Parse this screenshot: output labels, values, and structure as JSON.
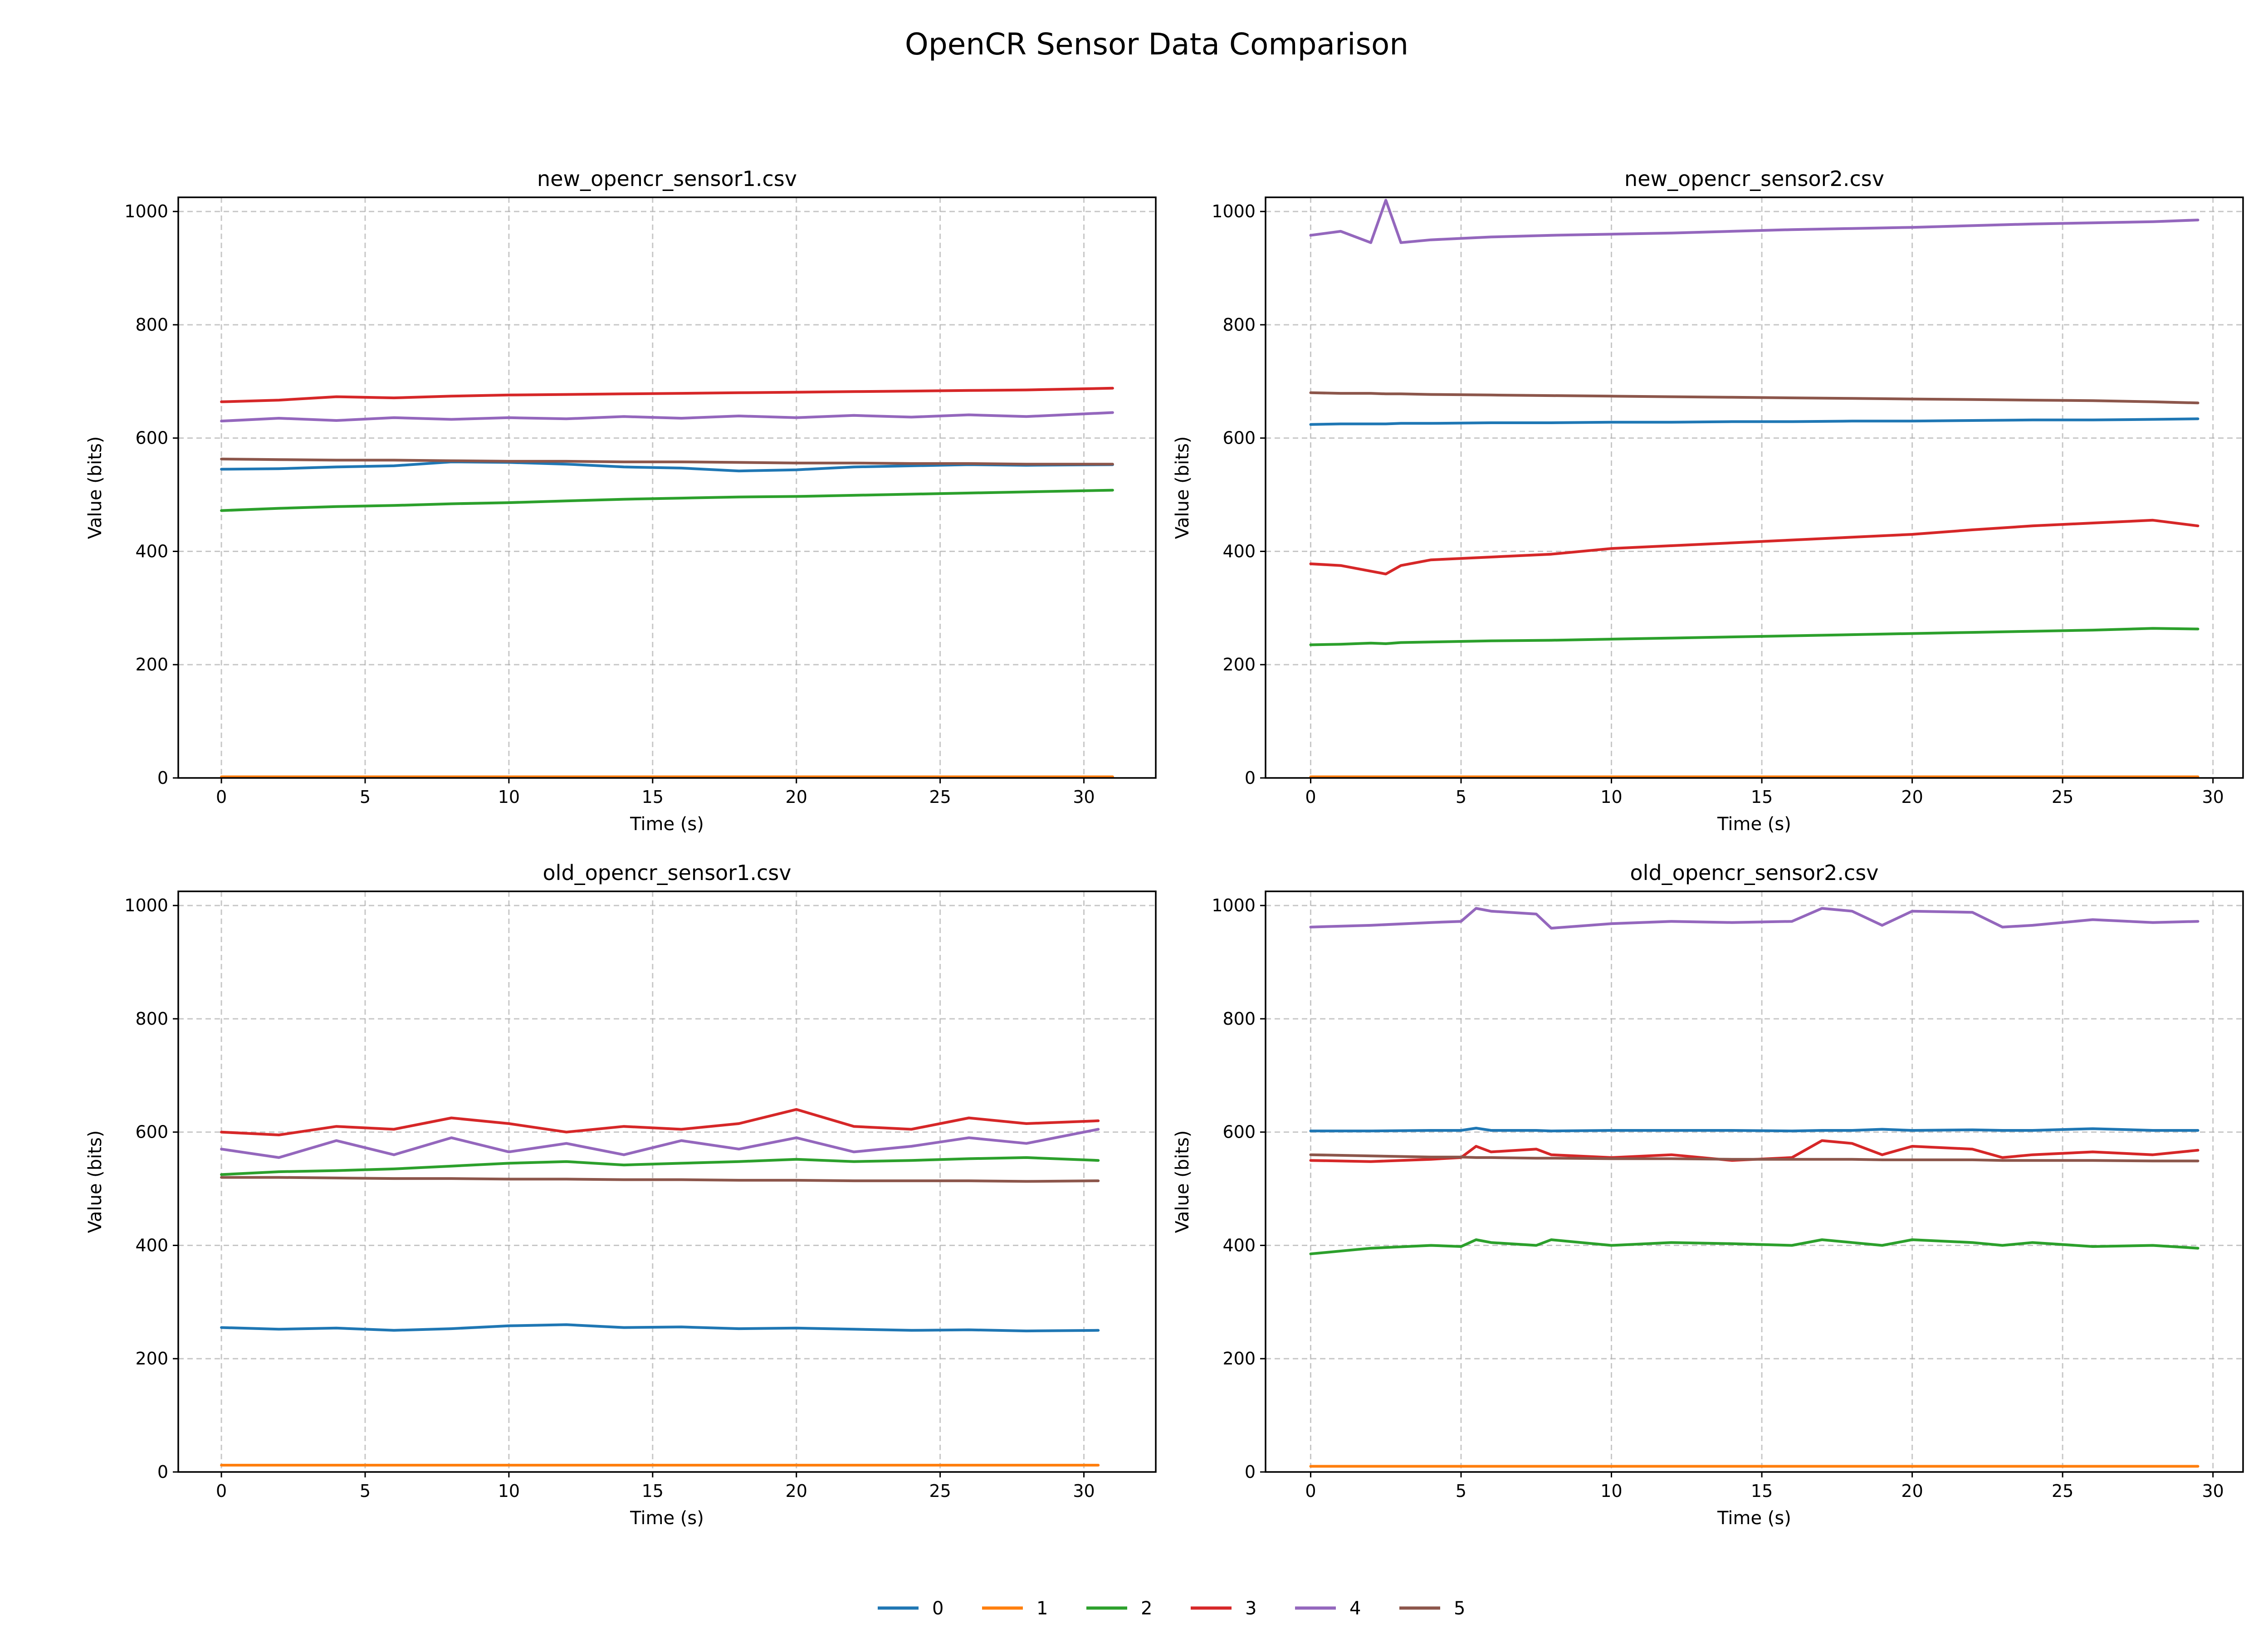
{
  "chart_data": {
    "title": "OpenCR Sensor Data Comparison",
    "legend": {
      "placement": "bottom-center",
      "entries": [
        {
          "name": "0",
          "color": "#1f77b4"
        },
        {
          "name": "1",
          "color": "#ff7f0e"
        },
        {
          "name": "2",
          "color": "#2ca02c"
        },
        {
          "name": "3",
          "color": "#d62728"
        },
        {
          "name": "4",
          "color": "#9467bd"
        },
        {
          "name": "5",
          "color": "#8c564b"
        }
      ]
    },
    "subplots": [
      {
        "type": "line",
        "title": "new_opencr_sensor1.csv",
        "xlabel": "Time (s)",
        "ylabel": "Value (bits)",
        "xlim": [
          -1.5,
          32.5
        ],
        "ylim": [
          0,
          1025
        ],
        "xticks": [
          "0",
          "5",
          "10",
          "15",
          "20",
          "25",
          "30"
        ],
        "yticks": [
          "0",
          "200",
          "400",
          "600",
          "800",
          "1000"
        ],
        "grid": true,
        "x": [
          0,
          2,
          4,
          6,
          8,
          10,
          12,
          14,
          16,
          18,
          20,
          22,
          24,
          26,
          28,
          31
        ],
        "series": [
          {
            "name": "0",
            "values": [
              545,
              546,
              549,
              551,
              558,
              557,
              554,
              549,
              547,
              542,
              544,
              549,
              551,
              553,
              552,
              553
            ]
          },
          {
            "name": "1",
            "values": [
              2,
              2,
              2,
              2,
              2,
              2,
              2,
              2,
              2,
              2,
              2,
              2,
              2,
              2,
              2,
              2
            ]
          },
          {
            "name": "2",
            "values": [
              472,
              476,
              479,
              481,
              484,
              486,
              489,
              492,
              494,
              496,
              497,
              499,
              501,
              503,
              505,
              508
            ]
          },
          {
            "name": "3",
            "values": [
              664,
              667,
              673,
              671,
              674,
              676,
              677,
              678,
              679,
              680,
              681,
              682,
              683,
              684,
              685,
              688
            ]
          },
          {
            "name": "4",
            "values": [
              630,
              635,
              631,
              636,
              633,
              636,
              634,
              638,
              635,
              639,
              636,
              640,
              637,
              641,
              638,
              645
            ]
          },
          {
            "name": "5",
            "values": [
              563,
              562,
              561,
              561,
              560,
              559,
              559,
              558,
              558,
              557,
              556,
              556,
              555,
              555,
              554,
              554
            ]
          }
        ]
      },
      {
        "type": "line",
        "title": "new_opencr_sensor2.csv",
        "xlabel": "Time (s)",
        "ylabel": "Value (bits)",
        "xlim": [
          -1.5,
          31
        ],
        "ylim": [
          0,
          1025
        ],
        "xticks": [
          "0",
          "5",
          "10",
          "15",
          "20",
          "25",
          "30"
        ],
        "yticks": [
          "0",
          "200",
          "400",
          "600",
          "800",
          "1000"
        ],
        "grid": true,
        "x": [
          0,
          1,
          2,
          2.5,
          3,
          4,
          6,
          8,
          10,
          12,
          14,
          16,
          18,
          20,
          22,
          24,
          26,
          28,
          29.5
        ],
        "series": [
          {
            "name": "0",
            "values": [
              624,
              625,
              625,
              625,
              626,
              626,
              627,
              627,
              628,
              628,
              629,
              629,
              630,
              630,
              631,
              632,
              632,
              633,
              634
            ]
          },
          {
            "name": "1",
            "values": [
              2,
              2,
              2,
              2,
              2,
              2,
              2,
              2,
              2,
              2,
              2,
              2,
              2,
              2,
              2,
              2,
              2,
              2,
              2
            ]
          },
          {
            "name": "2",
            "values": [
              235,
              236,
              238,
              237,
              239,
              240,
              242,
              243,
              245,
              247,
              249,
              251,
              253,
              255,
              257,
              259,
              261,
              264,
              263
            ]
          },
          {
            "name": "3",
            "values": [
              378,
              375,
              365,
              360,
              375,
              385,
              390,
              395,
              405,
              410,
              415,
              420,
              425,
              430,
              438,
              445,
              450,
              455,
              445
            ]
          },
          {
            "name": "4",
            "values": [
              958,
              965,
              945,
              1020,
              945,
              950,
              955,
              958,
              960,
              962,
              965,
              968,
              970,
              972,
              975,
              978,
              980,
              982,
              985
            ]
          },
          {
            "name": "5",
            "values": [
              680,
              679,
              679,
              678,
              678,
              677,
              676,
              675,
              674,
              673,
              672,
              671,
              670,
              669,
              668,
              667,
              666,
              664,
              662
            ]
          }
        ]
      },
      {
        "type": "line",
        "title": "old_opencr_sensor1.csv",
        "xlabel": "Time (s)",
        "ylabel": "Value (bits)",
        "xlim": [
          -1.5,
          32.5
        ],
        "ylim": [
          0,
          1025
        ],
        "xticks": [
          "0",
          "5",
          "10",
          "15",
          "20",
          "25",
          "30"
        ],
        "yticks": [
          "0",
          "200",
          "400",
          "600",
          "800",
          "1000"
        ],
        "grid": true,
        "x": [
          0,
          2,
          4,
          6,
          8,
          10,
          12,
          14,
          16,
          18,
          20,
          22,
          24,
          26,
          28,
          30.5
        ],
        "series": [
          {
            "name": "0",
            "values": [
              255,
              252,
              254,
              250,
              253,
              258,
              260,
              255,
              256,
              253,
              254,
              252,
              250,
              251,
              249,
              250
            ]
          },
          {
            "name": "1",
            "values": [
              12,
              12,
              12,
              12,
              12,
              12,
              12,
              12,
              12,
              12,
              12,
              12,
              12,
              12,
              12,
              12
            ]
          },
          {
            "name": "2",
            "values": [
              525,
              530,
              532,
              535,
              540,
              545,
              548,
              542,
              545,
              548,
              552,
              548,
              550,
              553,
              555,
              550
            ]
          },
          {
            "name": "3",
            "values": [
              600,
              595,
              610,
              605,
              625,
              615,
              600,
              610,
              605,
              615,
              640,
              610,
              605,
              625,
              615,
              620
            ]
          },
          {
            "name": "4",
            "values": [
              570,
              555,
              585,
              560,
              590,
              565,
              580,
              560,
              585,
              570,
              590,
              565,
              575,
              590,
              580,
              605
            ]
          },
          {
            "name": "5",
            "values": [
              520,
              520,
              519,
              518,
              518,
              517,
              517,
              516,
              516,
              515,
              515,
              514,
              514,
              514,
              513,
              514
            ]
          }
        ]
      },
      {
        "type": "line",
        "title": "old_opencr_sensor2.csv",
        "xlabel": "Time (s)",
        "ylabel": "Value (bits)",
        "xlim": [
          -1.5,
          31
        ],
        "ylim": [
          0,
          1025
        ],
        "xticks": [
          "0",
          "5",
          "10",
          "15",
          "20",
          "25",
          "30"
        ],
        "yticks": [
          "0",
          "200",
          "400",
          "600",
          "800",
          "1000"
        ],
        "grid": true,
        "x": [
          0,
          2,
          4,
          5,
          5.5,
          6,
          7.5,
          8,
          10,
          12,
          14,
          16,
          17,
          18,
          19,
          20,
          22,
          23,
          24,
          26,
          28,
          29.5
        ],
        "series": [
          {
            "name": "0",
            "values": [
              602,
              602,
              603,
              603,
              607,
              603,
              603,
              602,
              603,
              603,
              603,
              602,
              603,
              603,
              605,
              603,
              604,
              603,
              603,
              606,
              603,
              603
            ]
          },
          {
            "name": "1",
            "values": [
              10,
              10,
              10,
              10,
              10,
              10,
              10,
              10,
              10,
              10,
              10,
              10,
              10,
              10,
              10,
              10,
              10,
              10,
              10,
              10,
              10,
              10
            ]
          },
          {
            "name": "2",
            "values": [
              385,
              395,
              400,
              398,
              410,
              405,
              400,
              410,
              400,
              405,
              403,
              400,
              410,
              405,
              400,
              410,
              405,
              400,
              405,
              398,
              400,
              395
            ]
          },
          {
            "name": "3",
            "values": [
              550,
              548,
              552,
              555,
              575,
              565,
              570,
              560,
              555,
              560,
              550,
              555,
              585,
              580,
              560,
              575,
              570,
              555,
              560,
              565,
              560,
              568
            ]
          },
          {
            "name": "4",
            "values": [
              962,
              965,
              970,
              972,
              995,
              990,
              985,
              960,
              968,
              972,
              970,
              972,
              995,
              990,
              965,
              990,
              988,
              962,
              965,
              975,
              970,
              972
            ]
          },
          {
            "name": "5",
            "values": [
              560,
              558,
              556,
              556,
              555,
              555,
              554,
              554,
              553,
              553,
              552,
              552,
              552,
              552,
              551,
              551,
              551,
              550,
              550,
              550,
              549,
              549
            ]
          }
        ]
      }
    ]
  }
}
